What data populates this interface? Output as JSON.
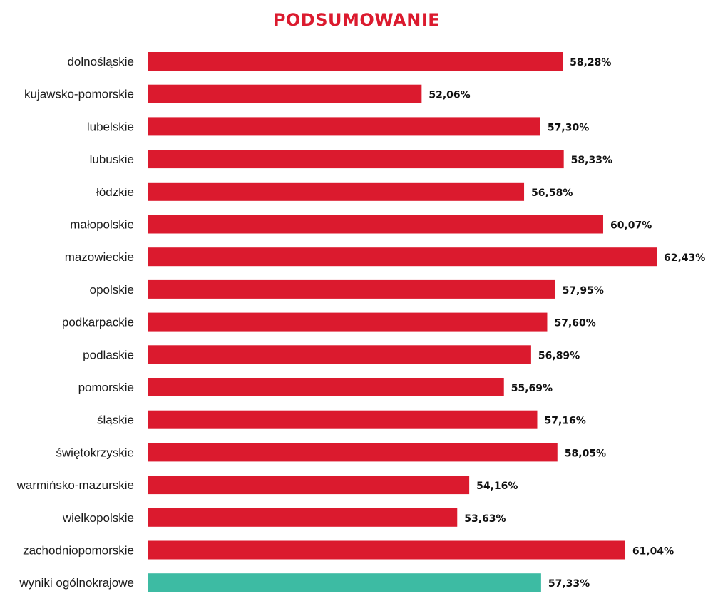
{
  "chart_data": {
    "type": "bar",
    "orientation": "horizontal",
    "title": "PODSUMOWANIE",
    "xlim": [
      40,
      62.43
    ],
    "grid": false,
    "colors": {
      "bar": "#db1a2e",
      "highlight": "#3dbba3",
      "title": "#db1a2e"
    },
    "categories": [
      "dolnośląskie",
      "kujawsko-pomorskie",
      "lubelskie",
      "lubuskie",
      "łódzkie",
      "małopolskie",
      "mazowieckie",
      "opolskie",
      "podkarpackie",
      "podlaskie",
      "pomorskie",
      "śląskie",
      "świętokrzyskie",
      "warmińsko-mazurskie",
      "wielkopolskie",
      "zachodniopomorskie",
      "wyniki ogólnokrajowe"
    ],
    "values": [
      58.28,
      52.06,
      57.3,
      58.33,
      56.58,
      60.07,
      62.43,
      57.95,
      57.6,
      56.89,
      55.69,
      57.16,
      58.05,
      54.16,
      53.63,
      61.04,
      57.33
    ],
    "value_labels": [
      "58,28%",
      "52,06%",
      "57,30%",
      "58,33%",
      "56,58%",
      "60,07%",
      "62,43%",
      "57,95%",
      "57,60%",
      "56,89%",
      "55,69%",
      "57,16%",
      "58,05%",
      "54,16%",
      "53,63%",
      "61,04%",
      "57,33%"
    ],
    "highlight_index": 16
  }
}
